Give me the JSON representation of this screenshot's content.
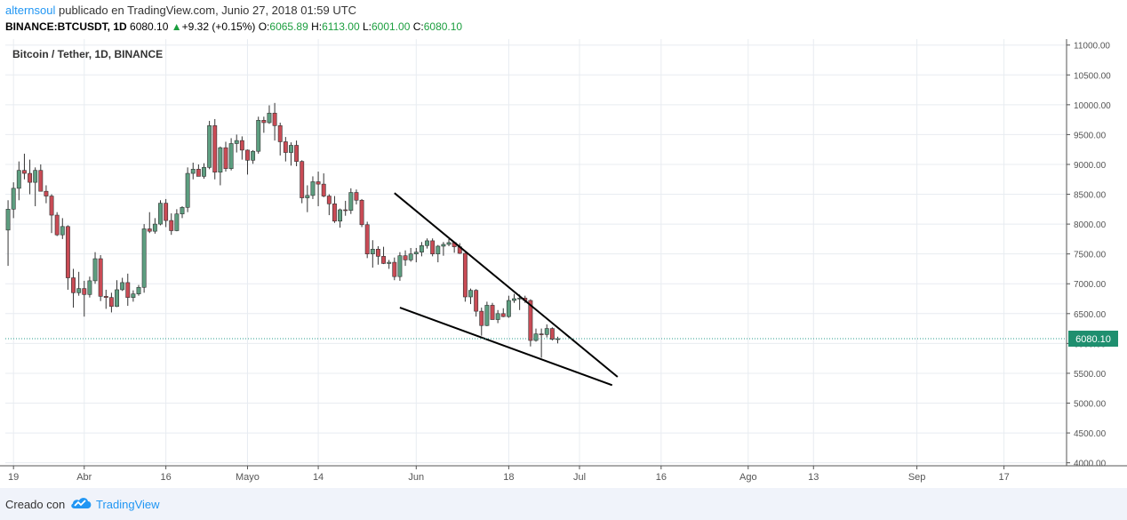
{
  "header": {
    "username": "alternsoul",
    "published_text": " publicado en TradingView.com, Junio 27, 2018 01:59 UTC",
    "symbol": "BINANCE:BTCUSDT, 1D",
    "last": "6080.10",
    "change_arrow": "▲",
    "change": "+9.32 (+0.15%)",
    "o_label": "O:",
    "o": "6065.89",
    "h_label": "H:",
    "h": "6113.00",
    "l_label": "L:",
    "l": "6001.00",
    "c_label": "C:",
    "c": "6080.10"
  },
  "footer": {
    "created": "Creado con",
    "brand": "TradingView",
    "logo_icon": "tradingview-cloud-icon"
  },
  "colors": {
    "up": "#5d9e80",
    "down": "#c94b55",
    "price_line": "#2a9d8f",
    "price_label_bg": "#1f8f6f",
    "grid": "#e8ecf1",
    "trendline": "#000000"
  },
  "chart_data": {
    "type": "candlestick",
    "title": "Bitcoin / Tether, 1D, BINANCE",
    "current_price_label": "6080.10",
    "current_price": 6080.1,
    "ylim": [
      3950,
      11100
    ],
    "y_ticks": [
      4000,
      4500,
      5000,
      5500,
      6000,
      6500,
      7000,
      7500,
      8000,
      8500,
      9000,
      9500,
      10000,
      10500,
      11000
    ],
    "y_tick_labels": [
      "4000.00",
      "4500.00",
      "5000.00",
      "5500.00",
      "6000.00",
      "6500.00",
      "7000.00",
      "7500.00",
      "8000.00",
      "8500.00",
      "9000.00",
      "9500.00",
      "10000.00",
      "10500.00",
      "11000.00"
    ],
    "x_start_date": "2018-03-18",
    "x_end_date": "2018-09-29",
    "x_ticks": [
      {
        "date": "2018-03-19",
        "label": "19"
      },
      {
        "date": "2018-04-01",
        "label": "Abr"
      },
      {
        "date": "2018-04-16",
        "label": "16"
      },
      {
        "date": "2018-05-01",
        "label": "Mayo"
      },
      {
        "date": "2018-05-14",
        "label": "14"
      },
      {
        "date": "2018-06-01",
        "label": "Jun"
      },
      {
        "date": "2018-06-18",
        "label": "18"
      },
      {
        "date": "2018-07-01",
        "label": "Jul"
      },
      {
        "date": "2018-07-16",
        "label": "16"
      },
      {
        "date": "2018-08-01",
        "label": "Ago"
      },
      {
        "date": "2018-08-13",
        "label": "13"
      },
      {
        "date": "2018-09-01",
        "label": "Sep"
      },
      {
        "date": "2018-09-17",
        "label": "17"
      }
    ],
    "candles": [
      {
        "d": "2018-03-18",
        "o": 7900,
        "h": 8400,
        "l": 7300,
        "c": 8250
      },
      {
        "d": "2018-03-19",
        "o": 8250,
        "h": 8700,
        "l": 8100,
        "c": 8600
      },
      {
        "d": "2018-03-20",
        "o": 8600,
        "h": 9050,
        "l": 8400,
        "c": 8900
      },
      {
        "d": "2018-03-21",
        "o": 8900,
        "h": 9180,
        "l": 8750,
        "c": 8850
      },
      {
        "d": "2018-03-22",
        "o": 8850,
        "h": 9080,
        "l": 8500,
        "c": 8700
      },
      {
        "d": "2018-03-23",
        "o": 8700,
        "h": 8950,
        "l": 8300,
        "c": 8900
      },
      {
        "d": "2018-03-24",
        "o": 8900,
        "h": 9000,
        "l": 8550,
        "c": 8550
      },
      {
        "d": "2018-03-25",
        "o": 8550,
        "h": 8650,
        "l": 8350,
        "c": 8470
      },
      {
        "d": "2018-03-26",
        "o": 8470,
        "h": 8500,
        "l": 7850,
        "c": 8150
      },
      {
        "d": "2018-03-27",
        "o": 8150,
        "h": 8200,
        "l": 7800,
        "c": 7820
      },
      {
        "d": "2018-03-28",
        "o": 7820,
        "h": 8100,
        "l": 7750,
        "c": 7960
      },
      {
        "d": "2018-03-29",
        "o": 7960,
        "h": 7980,
        "l": 6900,
        "c": 7100
      },
      {
        "d": "2018-03-30",
        "o": 7100,
        "h": 7250,
        "l": 6600,
        "c": 6850
      },
      {
        "d": "2018-03-31",
        "o": 6850,
        "h": 7200,
        "l": 6800,
        "c": 6920
      },
      {
        "d": "2018-04-01",
        "o": 6920,
        "h": 7050,
        "l": 6450,
        "c": 6820
      },
      {
        "d": "2018-04-02",
        "o": 6820,
        "h": 7120,
        "l": 6770,
        "c": 7050
      },
      {
        "d": "2018-04-03",
        "o": 7050,
        "h": 7530,
        "l": 7000,
        "c": 7420
      },
      {
        "d": "2018-04-04",
        "o": 7420,
        "h": 7480,
        "l": 6710,
        "c": 6790
      },
      {
        "d": "2018-04-05",
        "o": 6790,
        "h": 6900,
        "l": 6580,
        "c": 6770
      },
      {
        "d": "2018-04-06",
        "o": 6770,
        "h": 6850,
        "l": 6520,
        "c": 6620
      },
      {
        "d": "2018-04-07",
        "o": 6620,
        "h": 7060,
        "l": 6610,
        "c": 6900
      },
      {
        "d": "2018-04-08",
        "o": 6900,
        "h": 7100,
        "l": 6880,
        "c": 7020
      },
      {
        "d": "2018-04-09",
        "o": 7020,
        "h": 7170,
        "l": 6630,
        "c": 6770
      },
      {
        "d": "2018-04-10",
        "o": 6770,
        "h": 6890,
        "l": 6700,
        "c": 6830
      },
      {
        "d": "2018-04-11",
        "o": 6830,
        "h": 6980,
        "l": 6800,
        "c": 6940
      },
      {
        "d": "2018-04-12",
        "o": 6940,
        "h": 8000,
        "l": 6850,
        "c": 7920
      },
      {
        "d": "2018-04-13",
        "o": 7920,
        "h": 8200,
        "l": 7850,
        "c": 7880
      },
      {
        "d": "2018-04-14",
        "o": 7880,
        "h": 8100,
        "l": 7840,
        "c": 8000
      },
      {
        "d": "2018-04-15",
        "o": 8000,
        "h": 8400,
        "l": 7980,
        "c": 8350
      },
      {
        "d": "2018-04-16",
        "o": 8350,
        "h": 8420,
        "l": 7950,
        "c": 8060
      },
      {
        "d": "2018-04-17",
        "o": 8060,
        "h": 8180,
        "l": 7820,
        "c": 7890
      },
      {
        "d": "2018-04-18",
        "o": 7890,
        "h": 8250,
        "l": 7880,
        "c": 8170
      },
      {
        "d": "2018-04-19",
        "o": 8170,
        "h": 8300,
        "l": 8100,
        "c": 8280
      },
      {
        "d": "2018-04-20",
        "o": 8280,
        "h": 8950,
        "l": 8200,
        "c": 8850
      },
      {
        "d": "2018-04-21",
        "o": 8850,
        "h": 9030,
        "l": 8750,
        "c": 8920
      },
      {
        "d": "2018-04-22",
        "o": 8920,
        "h": 9000,
        "l": 8800,
        "c": 8800
      },
      {
        "d": "2018-04-23",
        "o": 8800,
        "h": 9020,
        "l": 8760,
        "c": 8950
      },
      {
        "d": "2018-04-24",
        "o": 8950,
        "h": 9730,
        "l": 8920,
        "c": 9650
      },
      {
        "d": "2018-04-25",
        "o": 9650,
        "h": 9760,
        "l": 8750,
        "c": 8870
      },
      {
        "d": "2018-04-26",
        "o": 8870,
        "h": 9300,
        "l": 8650,
        "c": 9280
      },
      {
        "d": "2018-04-27",
        "o": 9280,
        "h": 9380,
        "l": 8880,
        "c": 8930
      },
      {
        "d": "2018-04-28",
        "o": 8930,
        "h": 9440,
        "l": 8900,
        "c": 9350
      },
      {
        "d": "2018-04-29",
        "o": 9350,
        "h": 9500,
        "l": 9200,
        "c": 9400
      },
      {
        "d": "2018-04-30",
        "o": 9400,
        "h": 9470,
        "l": 9080,
        "c": 9240
      },
      {
        "d": "2018-05-01",
        "o": 9240,
        "h": 9250,
        "l": 8830,
        "c": 9070
      },
      {
        "d": "2018-05-02",
        "o": 9070,
        "h": 9240,
        "l": 9010,
        "c": 9220
      },
      {
        "d": "2018-05-03",
        "o": 9220,
        "h": 9800,
        "l": 9180,
        "c": 9740
      },
      {
        "d": "2018-05-04",
        "o": 9740,
        "h": 9800,
        "l": 9530,
        "c": 9700
      },
      {
        "d": "2018-05-05",
        "o": 9700,
        "h": 9990,
        "l": 9680,
        "c": 9860
      },
      {
        "d": "2018-05-06",
        "o": 9860,
        "h": 10030,
        "l": 9400,
        "c": 9650
      },
      {
        "d": "2018-05-07",
        "o": 9650,
        "h": 9700,
        "l": 9150,
        "c": 9380
      },
      {
        "d": "2018-05-08",
        "o": 9380,
        "h": 9460,
        "l": 9050,
        "c": 9200
      },
      {
        "d": "2018-05-09",
        "o": 9200,
        "h": 9370,
        "l": 8980,
        "c": 9320
      },
      {
        "d": "2018-05-10",
        "o": 9320,
        "h": 9400,
        "l": 8970,
        "c": 9050
      },
      {
        "d": "2018-05-11",
        "o": 9050,
        "h": 9070,
        "l": 8350,
        "c": 8440
      },
      {
        "d": "2018-05-12",
        "o": 8440,
        "h": 8650,
        "l": 8200,
        "c": 8480
      },
      {
        "d": "2018-05-13",
        "o": 8480,
        "h": 8800,
        "l": 8420,
        "c": 8710
      },
      {
        "d": "2018-05-14",
        "o": 8710,
        "h": 8880,
        "l": 8300,
        "c": 8670
      },
      {
        "d": "2018-05-15",
        "o": 8670,
        "h": 8850,
        "l": 8450,
        "c": 8470
      },
      {
        "d": "2018-05-16",
        "o": 8470,
        "h": 8500,
        "l": 8150,
        "c": 8340
      },
      {
        "d": "2018-05-17",
        "o": 8340,
        "h": 8470,
        "l": 8020,
        "c": 8050
      },
      {
        "d": "2018-05-18",
        "o": 8050,
        "h": 8260,
        "l": 7940,
        "c": 8240
      },
      {
        "d": "2018-05-19",
        "o": 8240,
        "h": 8390,
        "l": 8140,
        "c": 8230
      },
      {
        "d": "2018-05-20",
        "o": 8230,
        "h": 8600,
        "l": 8170,
        "c": 8530
      },
      {
        "d": "2018-05-21",
        "o": 8530,
        "h": 8580,
        "l": 8330,
        "c": 8400
      },
      {
        "d": "2018-05-22",
        "o": 8400,
        "h": 8420,
        "l": 7950,
        "c": 7990
      },
      {
        "d": "2018-05-23",
        "o": 7990,
        "h": 8040,
        "l": 7430,
        "c": 7500
      },
      {
        "d": "2018-05-24",
        "o": 7500,
        "h": 7730,
        "l": 7270,
        "c": 7580
      },
      {
        "d": "2018-05-25",
        "o": 7580,
        "h": 7630,
        "l": 7320,
        "c": 7460
      },
      {
        "d": "2018-05-26",
        "o": 7460,
        "h": 7620,
        "l": 7330,
        "c": 7340
      },
      {
        "d": "2018-05-27",
        "o": 7340,
        "h": 7400,
        "l": 7250,
        "c": 7360
      },
      {
        "d": "2018-05-28",
        "o": 7360,
        "h": 7440,
        "l": 7060,
        "c": 7120
      },
      {
        "d": "2018-05-29",
        "o": 7120,
        "h": 7530,
        "l": 7050,
        "c": 7470
      },
      {
        "d": "2018-05-30",
        "o": 7470,
        "h": 7560,
        "l": 7300,
        "c": 7400
      },
      {
        "d": "2018-05-31",
        "o": 7400,
        "h": 7600,
        "l": 7370,
        "c": 7500
      },
      {
        "d": "2018-06-01",
        "o": 7500,
        "h": 7600,
        "l": 7360,
        "c": 7530
      },
      {
        "d": "2018-06-02",
        "o": 7530,
        "h": 7700,
        "l": 7460,
        "c": 7640
      },
      {
        "d": "2018-06-03",
        "o": 7640,
        "h": 7760,
        "l": 7590,
        "c": 7720
      },
      {
        "d": "2018-06-04",
        "o": 7720,
        "h": 7760,
        "l": 7460,
        "c": 7500
      },
      {
        "d": "2018-06-05",
        "o": 7500,
        "h": 7650,
        "l": 7360,
        "c": 7630
      },
      {
        "d": "2018-06-06",
        "o": 7630,
        "h": 7700,
        "l": 7470,
        "c": 7660
      },
      {
        "d": "2018-06-07",
        "o": 7660,
        "h": 7750,
        "l": 7630,
        "c": 7690
      },
      {
        "d": "2018-06-08",
        "o": 7690,
        "h": 7700,
        "l": 7520,
        "c": 7620
      },
      {
        "d": "2018-06-09",
        "o": 7620,
        "h": 7680,
        "l": 7500,
        "c": 7510
      },
      {
        "d": "2018-06-10",
        "o": 7510,
        "h": 7520,
        "l": 6700,
        "c": 6780
      },
      {
        "d": "2018-06-11",
        "o": 6780,
        "h": 6920,
        "l": 6660,
        "c": 6890
      },
      {
        "d": "2018-06-12",
        "o": 6890,
        "h": 6910,
        "l": 6450,
        "c": 6540
      },
      {
        "d": "2018-06-13",
        "o": 6540,
        "h": 6600,
        "l": 6130,
        "c": 6300
      },
      {
        "d": "2018-06-14",
        "o": 6300,
        "h": 6700,
        "l": 6290,
        "c": 6640
      },
      {
        "d": "2018-06-15",
        "o": 6640,
        "h": 6680,
        "l": 6400,
        "c": 6400
      },
      {
        "d": "2018-06-16",
        "o": 6400,
        "h": 6560,
        "l": 6340,
        "c": 6500
      },
      {
        "d": "2018-06-17",
        "o": 6500,
        "h": 6590,
        "l": 6440,
        "c": 6450
      },
      {
        "d": "2018-06-18",
        "o": 6450,
        "h": 6800,
        "l": 6430,
        "c": 6720
      },
      {
        "d": "2018-06-19",
        "o": 6720,
        "h": 6830,
        "l": 6680,
        "c": 6750
      },
      {
        "d": "2018-06-20",
        "o": 6750,
        "h": 6820,
        "l": 6560,
        "c": 6760
      },
      {
        "d": "2018-06-21",
        "o": 6760,
        "h": 6800,
        "l": 6680,
        "c": 6720
      },
      {
        "d": "2018-06-22",
        "o": 6720,
        "h": 6740,
        "l": 5950,
        "c": 6050
      },
      {
        "d": "2018-06-23",
        "o": 6050,
        "h": 6250,
        "l": 6030,
        "c": 6160
      },
      {
        "d": "2018-06-24",
        "o": 6160,
        "h": 6250,
        "l": 5760,
        "c": 6150
      },
      {
        "d": "2018-06-25",
        "o": 6150,
        "h": 6320,
        "l": 6100,
        "c": 6250
      },
      {
        "d": "2018-06-26",
        "o": 6250,
        "h": 6270,
        "l": 6050,
        "c": 6070
      },
      {
        "d": "2018-06-27",
        "o": 6065.89,
        "h": 6113,
        "l": 6001,
        "c": 6080.1
      }
    ],
    "trendlines": [
      {
        "from": {
          "d": "2018-05-28",
          "v": 8520
        },
        "to": {
          "d": "2018-07-08",
          "v": 5440
        }
      },
      {
        "from": {
          "d": "2018-05-29",
          "v": 6600
        },
        "to": {
          "d": "2018-07-07",
          "v": 5300
        }
      }
    ]
  }
}
